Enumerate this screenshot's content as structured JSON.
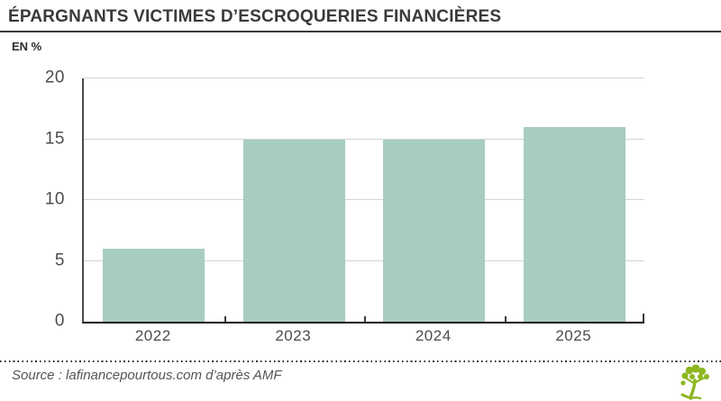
{
  "header": {
    "title": "ÉPARGNANTS VICTIMES D’ESCROQUERIES FINANCIÈRES",
    "unit_label": "EN %"
  },
  "chart_data": {
    "type": "bar",
    "title": "ÉPARGNANTS VICTIMES D’ESCROQUERIES FINANCIÈRES",
    "categories": [
      "2022",
      "2023",
      "2024",
      "2025"
    ],
    "values": [
      6,
      15,
      15,
      16
    ],
    "xlabel": "",
    "ylabel": "EN %",
    "ylim": [
      0,
      20
    ],
    "yticks": [
      0,
      5,
      10,
      15,
      20
    ],
    "grid": true,
    "legend": false,
    "bar_color": "#a7ccc1",
    "gridline_color": "#d4d4d4",
    "axis_color": "#3a3a3a",
    "tick_label_color": "#4d4d4d"
  },
  "footer": {
    "source": "Source : lafinancepourtous.com d’après AMF",
    "logo": "tree-icon",
    "logo_color": "#8cb71f"
  }
}
